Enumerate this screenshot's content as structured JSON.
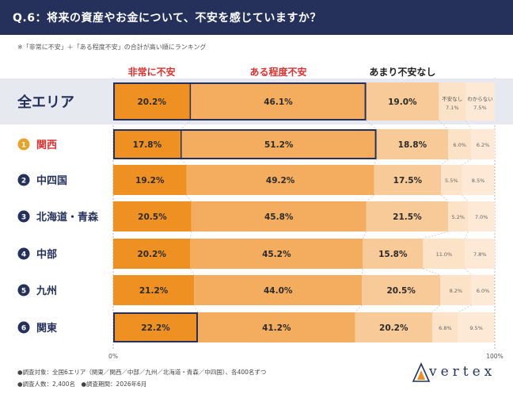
{
  "header": {
    "title": "Q.6：将来の資産やお金について、不安を感じていますか？"
  },
  "note": "※「非常に不安」＋「ある程度不安」の合計が高い順にランキング",
  "footer": {
    "line1": "●調査対象：全国6エリア（関東／関西／中部／九州／北海道・青森／中四国）、各400名ずつ",
    "line2": "●調査人数：2,400名　●調査期間：2026年6月"
  },
  "logo": {
    "text": "vertex"
  },
  "colors": {
    "header_bg": "#25315b",
    "very_anxious": "#ef9022",
    "somewhat_anxious": "#f4ad5f",
    "not_very": "#f8ca97",
    "not_at_all": "#fce3c8",
    "dont_know": "#fde9d6",
    "highlight_row": "#e7e9f1",
    "rank1": "#e7a329",
    "rank_other": "#25315b",
    "red_label": "#e03030",
    "border": "#25315b"
  },
  "chart_data": {
    "type": "bar",
    "orientation": "horizontal",
    "stacked": true,
    "xlim": [
      0,
      100
    ],
    "x_tick_labels": [
      "0%",
      "100%"
    ],
    "series_labels": [
      "非常に不安",
      "ある程度不安",
      "あまり不安なし",
      "不安なし",
      "わからない"
    ],
    "series_label_colors": [
      "#e03030",
      "#e03030",
      "#222222",
      "#555555",
      "#555555"
    ],
    "rows": [
      {
        "rank": "",
        "label": "全エリア",
        "values": [
          20.2,
          46.1,
          19.0,
          7.1,
          7.5
        ],
        "value_labels": [
          "20.2%",
          "46.1%",
          "19.0%",
          "7.1%",
          "7.5%"
        ],
        "highlight": true,
        "boxed": "both"
      },
      {
        "rank": "1",
        "label": "関西",
        "values": [
          17.8,
          51.2,
          18.8,
          6.0,
          6.2
        ],
        "value_labels": [
          "17.8%",
          "51.2%",
          "18.8%",
          "6.0%",
          "6.2%"
        ],
        "highlight": false,
        "boxed": "both",
        "label_color": "#e03030"
      },
      {
        "rank": "2",
        "label": "中四国",
        "values": [
          19.2,
          49.2,
          17.5,
          5.5,
          8.5
        ],
        "value_labels": [
          "19.2%",
          "49.2%",
          "17.5%",
          "5.5%",
          "8.5%"
        ],
        "highlight": false,
        "boxed": "none"
      },
      {
        "rank": "3",
        "label": "北海道・青森",
        "values": [
          20.5,
          45.8,
          21.5,
          5.2,
          7.0
        ],
        "value_labels": [
          "20.5%",
          "45.8%",
          "21.5%",
          "5.2%",
          "7.0%"
        ],
        "highlight": false,
        "boxed": "none"
      },
      {
        "rank": "4",
        "label": "中部",
        "values": [
          20.2,
          45.2,
          15.8,
          11.0,
          7.8
        ],
        "value_labels": [
          "20.2%",
          "45.2%",
          "15.8%",
          "11.0%",
          "7.8%"
        ],
        "highlight": false,
        "boxed": "none"
      },
      {
        "rank": "5",
        "label": "九州",
        "values": [
          21.2,
          44.0,
          20.5,
          8.2,
          6.0
        ],
        "value_labels": [
          "21.2%",
          "44.0%",
          "20.5%",
          "8.2%",
          "6.0%"
        ],
        "highlight": false,
        "boxed": "none"
      },
      {
        "rank": "6",
        "label": "関東",
        "values": [
          22.2,
          41.2,
          20.2,
          6.8,
          9.5
        ],
        "value_labels": [
          "22.2%",
          "41.2%",
          "20.2%",
          "6.8%",
          "9.5%"
        ],
        "highlight": false,
        "boxed": "first"
      }
    ]
  }
}
